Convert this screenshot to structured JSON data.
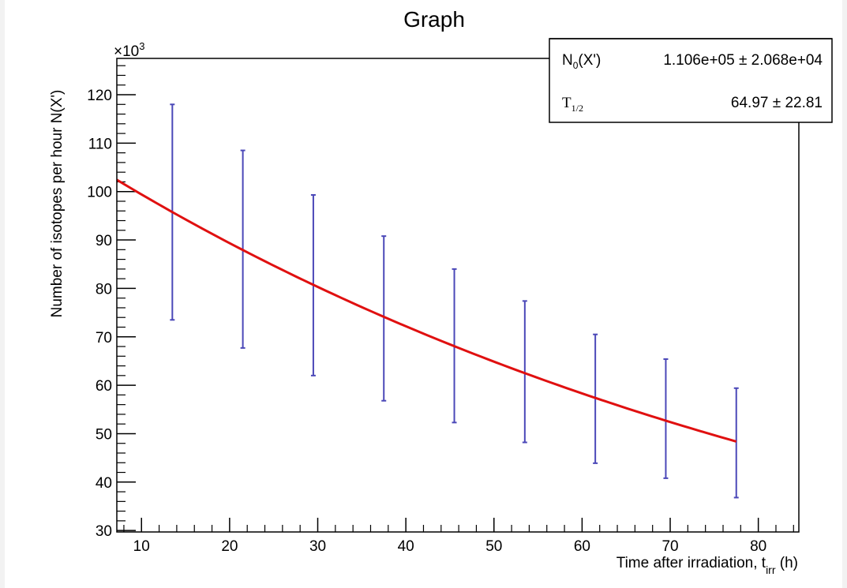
{
  "chart_data": {
    "type": "scatter",
    "title": "Graph",
    "xlabel": {
      "main": "Time after irradiation, t",
      "sub": "irr",
      "unit": " (h)"
    },
    "ylabel": "Number of isotopes per hour N(X')",
    "y_multiplier": "×10",
    "y_multiplier_exp": "3",
    "xlim": [
      7.2,
      84.6
    ],
    "ylim": [
      29.7,
      127.5
    ],
    "x_ticks": [
      10,
      20,
      30,
      40,
      50,
      60,
      70,
      80
    ],
    "y_ticks": [
      30,
      40,
      50,
      60,
      70,
      80,
      90,
      100,
      110,
      120
    ],
    "grid": false,
    "points": [
      {
        "x": 13.5,
        "ylow": 73.5,
        "yhigh": 118.0
      },
      {
        "x": 21.5,
        "ylow": 67.7,
        "yhigh": 108.5
      },
      {
        "x": 29.5,
        "ylow": 62.0,
        "yhigh": 99.3
      },
      {
        "x": 37.5,
        "ylow": 56.8,
        "yhigh": 90.8
      },
      {
        "x": 45.5,
        "ylow": 52.3,
        "yhigh": 84.0
      },
      {
        "x": 53.5,
        "ylow": 48.2,
        "yhigh": 77.4
      },
      {
        "x": 61.5,
        "ylow": 43.9,
        "yhigh": 70.5
      },
      {
        "x": 69.5,
        "ylow": 40.8,
        "yhigh": 65.4
      },
      {
        "x": 77.5,
        "ylow": 36.8,
        "yhigh": 59.4
      }
    ],
    "fit": {
      "function": "N0 * 2^(-t / T_half)",
      "N0": 110.6,
      "T_half": 64.97,
      "x_range": [
        7.2,
        77.5
      ]
    },
    "colors": {
      "points": "#4b48b8",
      "fit": "#e01010"
    }
  },
  "stats_box": {
    "row1": {
      "label": "N",
      "label_sub": "0",
      "label_rest": "(X')",
      "value": "1.106e+05 ± 2.068e+04"
    },
    "row2": {
      "label": "T",
      "label_sub": "1/2",
      "value": "64.97 ± 22.81"
    }
  }
}
